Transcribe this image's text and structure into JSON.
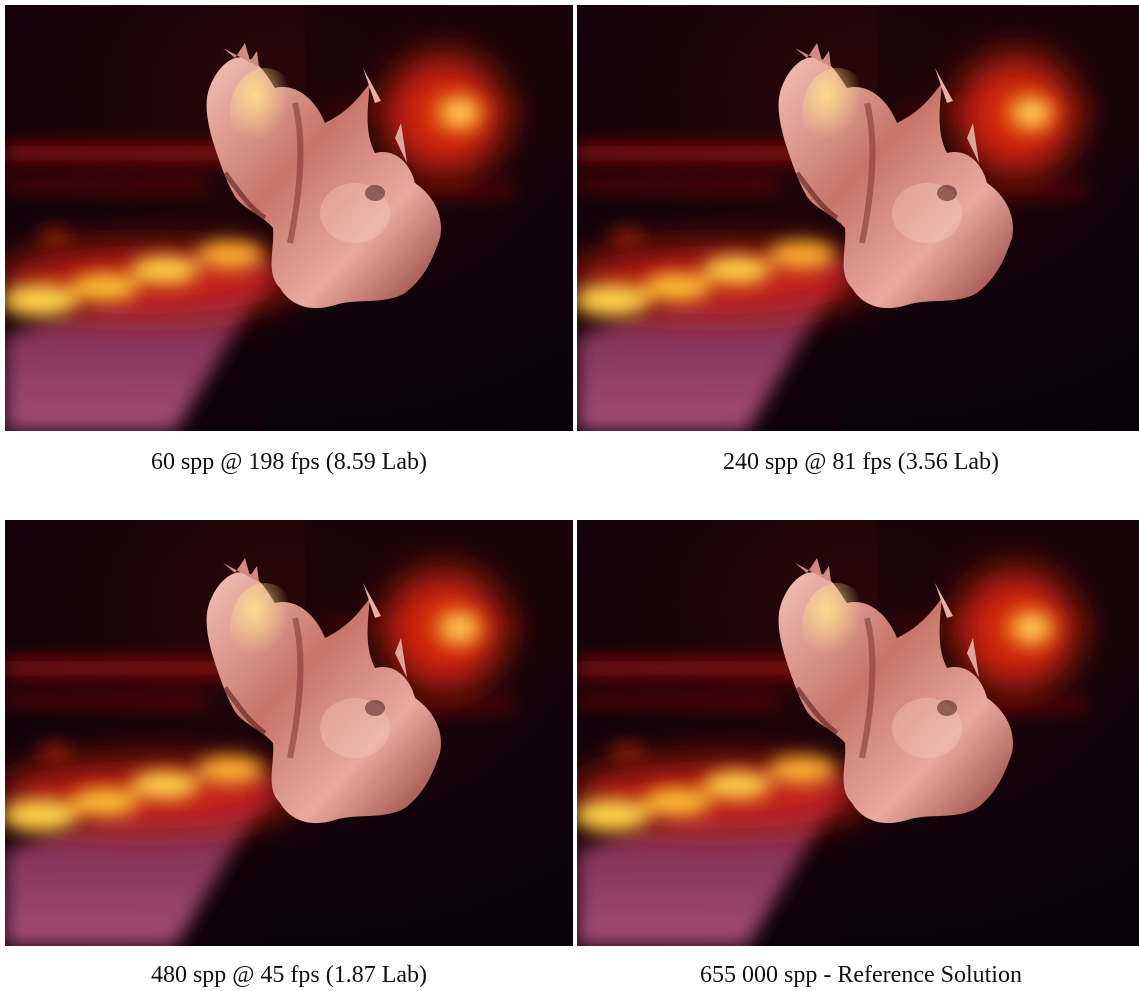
{
  "figure": {
    "panels": [
      {
        "caption": "60 spp @ 198 fps (8.59 Lab)"
      },
      {
        "caption": "240 spp @ 81 fps (3.56 Lab)"
      },
      {
        "caption": "480 spp @ 45 fps (1.87 Lab)"
      },
      {
        "caption": "655 000 spp - Reference Solution"
      }
    ]
  }
}
